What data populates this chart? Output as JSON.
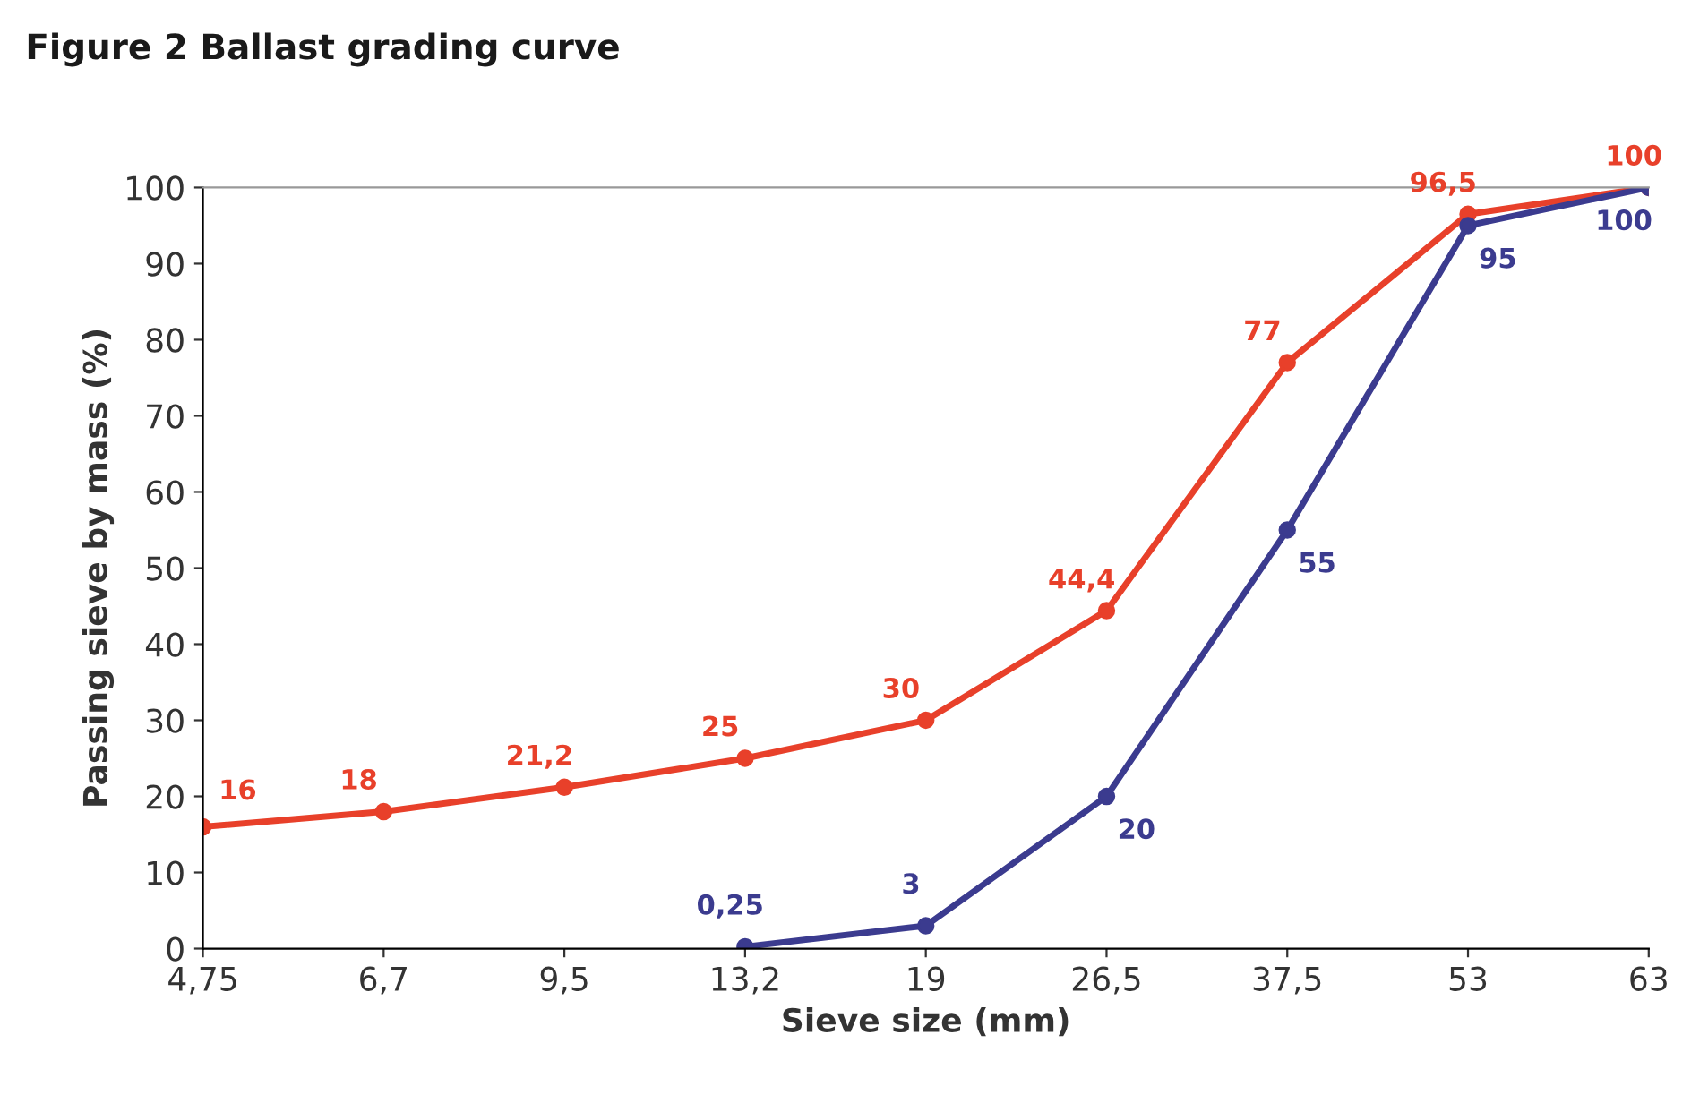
{
  "chart_data": {
    "type": "line",
    "title": "Figure 2 Ballast grading curve",
    "xlabel": "Sieve size (mm)",
    "ylabel": "Passing sieve by mass (%)",
    "categories": [
      "4,75",
      "6,7",
      "9,5",
      "13,2",
      "19",
      "26,5",
      "37,5",
      "53",
      "63"
    ],
    "series": [
      {
        "color": "#e8402a",
        "values": [
          16,
          18,
          21.2,
          25,
          30,
          44.4,
          77,
          96.5,
          100
        ],
        "value_labels": [
          "16",
          "18",
          "21,2",
          "25",
          "30",
          "44,4",
          "77",
          "96,5",
          "100"
        ]
      },
      {
        "color": "#3b3b8f",
        "values": [
          null,
          null,
          null,
          0.25,
          3,
          20,
          55,
          95,
          100
        ],
        "value_labels": [
          null,
          null,
          null,
          "0,25",
          "3",
          "20",
          "55",
          "95",
          "100"
        ]
      }
    ],
    "ylim": [
      0,
      100
    ],
    "yticks": [
      0,
      10,
      20,
      30,
      40,
      50,
      60,
      70,
      80,
      90,
      100
    ],
    "grid": false,
    "legend": false,
    "marker": "circle",
    "line_style": "solid"
  }
}
